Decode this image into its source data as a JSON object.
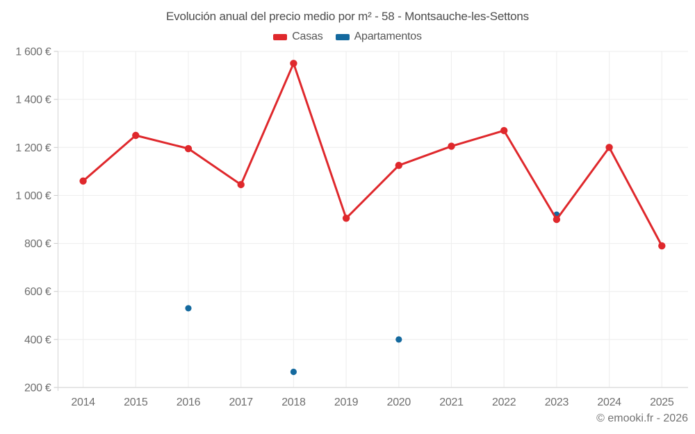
{
  "page": {
    "watermark": "© emooki.fr - 2026"
  },
  "chart_data": {
    "type": "line",
    "title": "Evolución anual del precio medio por m² - 58 - Montsauche-les-Settons",
    "categories": [
      "2014",
      "2015",
      "2016",
      "2017",
      "2018",
      "2019",
      "2020",
      "2021",
      "2022",
      "2023",
      "2024",
      "2025"
    ],
    "series": [
      {
        "name": "Casas",
        "color": "#df282c",
        "values": [
          1060,
          1250,
          1195,
          1045,
          1550,
          905,
          1125,
          1205,
          1270,
          900,
          1200,
          790
        ]
      },
      {
        "name": "Apartamentos",
        "color": "#14699e",
        "values": [
          null,
          null,
          530,
          null,
          265,
          null,
          400,
          null,
          null,
          920,
          null,
          null
        ]
      }
    ],
    "xlabel": "",
    "ylabel": "",
    "ylim": [
      200,
      1600
    ],
    "ytick_step": 200,
    "ytick_labels": [
      "200 €",
      "400 €",
      "600 €",
      "800 €",
      "1 000 €",
      "1 200 €",
      "1 400 €",
      "1 600 €"
    ],
    "currency_suffix": "€",
    "grid": true,
    "legend_position": "top"
  }
}
